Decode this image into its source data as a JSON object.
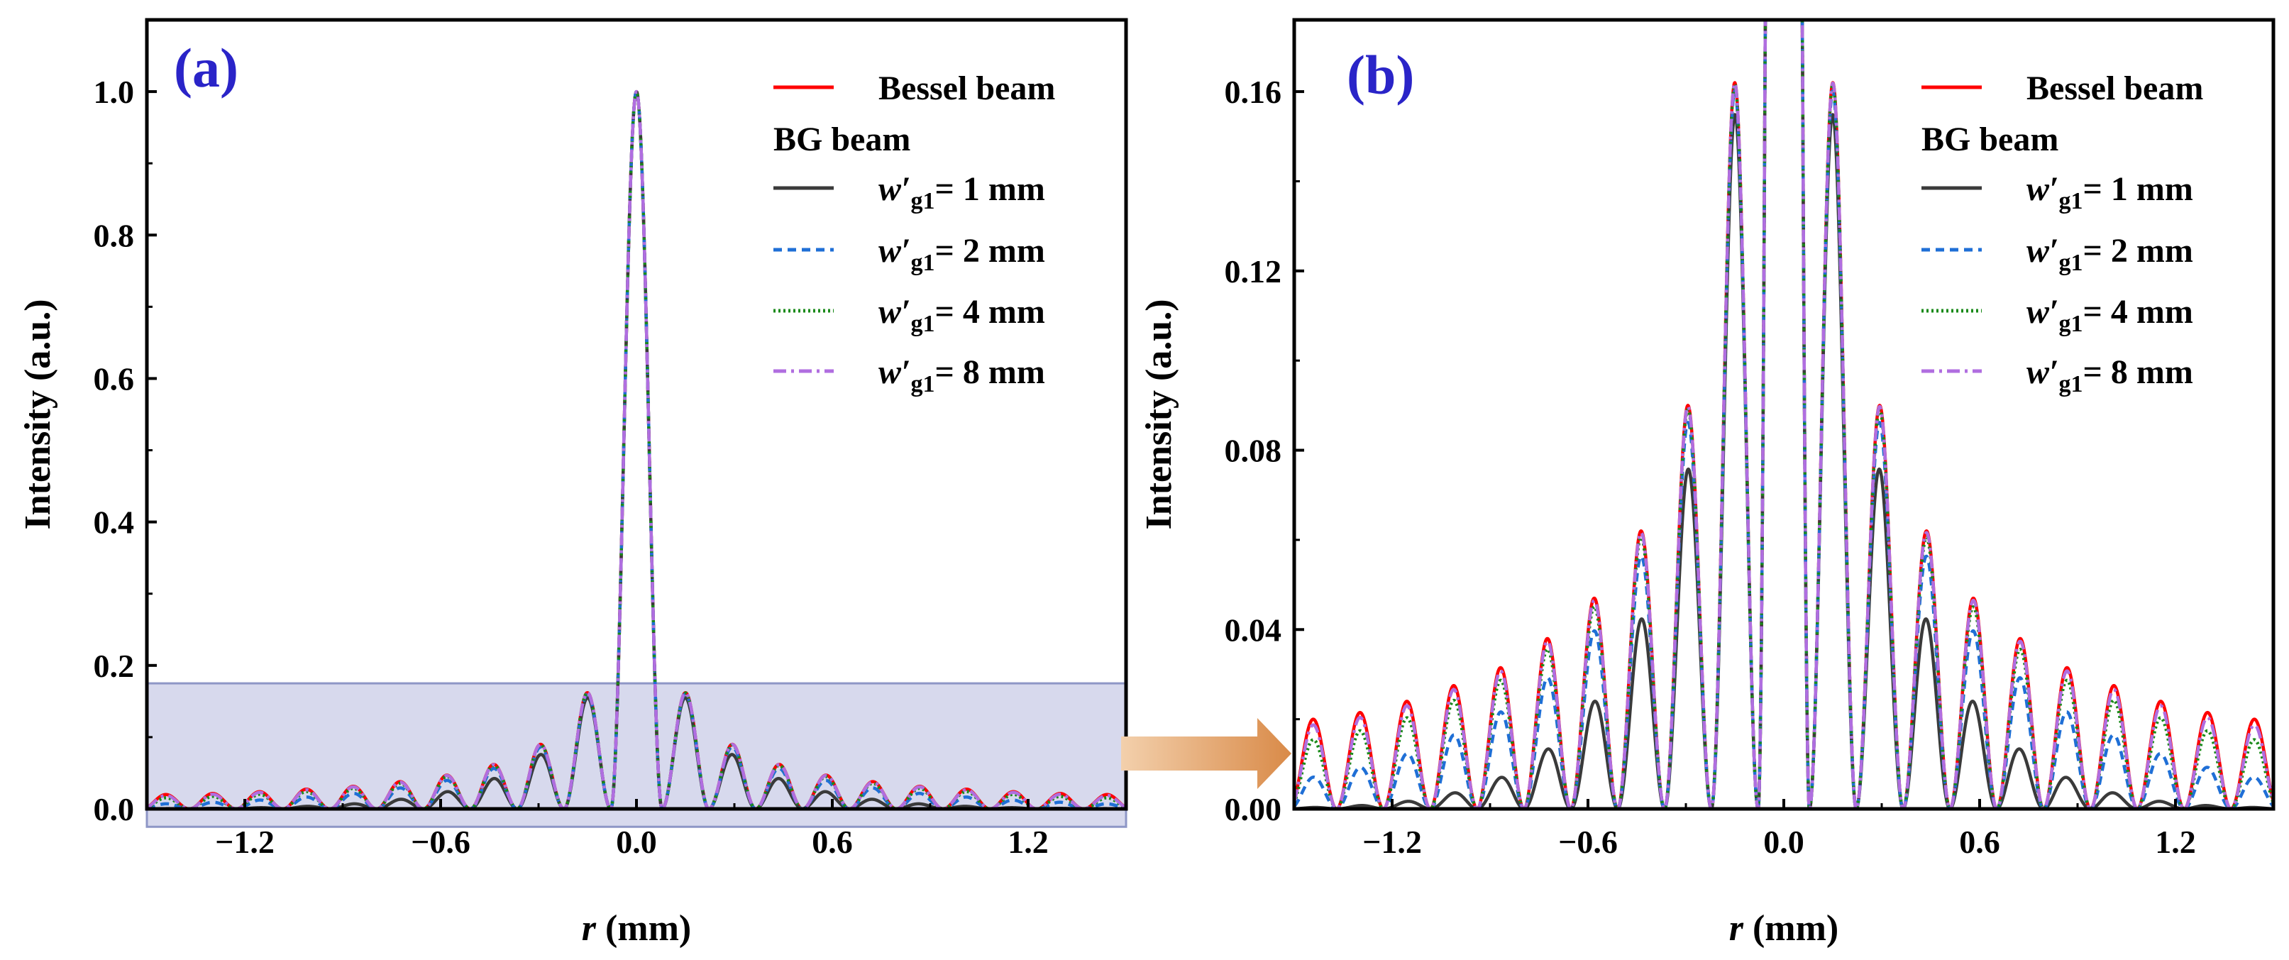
{
  "chart_data": [
    {
      "type": "line",
      "panel_label": "(a)",
      "xlabel_italic": "r",
      "xlabel_rest": " (mm)",
      "ylabel": "Intensity (a.u.)",
      "xlim": [
        -1.5,
        1.5
      ],
      "ylim": [
        0,
        1.1
      ],
      "xticks": [
        -1.2,
        -0.6,
        0.0,
        0.6,
        1.2
      ],
      "xtick_labels": [
        "−1.2",
        "−0.6",
        "0.0",
        "0.6",
        "1.2"
      ],
      "yticks": [
        0,
        0.2,
        0.4,
        0.6,
        0.8,
        1.0
      ],
      "ytick_labels": [
        "0.0",
        "0.2",
        "0.4",
        "0.6",
        "0.8",
        "1.0"
      ],
      "highlight_box": {
        "x": [
          -1.5,
          1.5
        ],
        "y": [
          -0.025,
          0.175
        ]
      }
    },
    {
      "type": "line",
      "panel_label": "(b)",
      "xlabel_italic": "r",
      "xlabel_rest": " (mm)",
      "ylabel": "Intensity (a.u.)",
      "xlim": [
        -1.5,
        1.5
      ],
      "ylim": [
        0,
        0.176
      ],
      "xticks": [
        -1.2,
        -0.6,
        0.0,
        0.6,
        1.2
      ],
      "xtick_labels": [
        "−1.2",
        "−0.6",
        "0.0",
        "0.6",
        "1.2"
      ],
      "yticks": [
        0,
        0.04,
        0.08,
        0.12,
        0.16
      ],
      "ytick_labels": [
        "0.00",
        "0.04",
        "0.08",
        "0.12",
        "0.16"
      ]
    }
  ],
  "model": {
    "description": "Bessel J0^2 radial profile; BG beam = Bessel x Gaussian envelope",
    "first_zero_mm": 0.0785,
    "lobe_spacing_mm": 0.1435,
    "side_lobe_peaks_mm": [
      0.1435,
      0.287,
      0.4305,
      0.574,
      0.7175,
      0.861,
      1.0045,
      1.148,
      1.2915,
      1.435
    ],
    "bessel_peak_values": [
      0.162,
      0.09,
      0.062,
      0.047,
      0.038,
      0.0315,
      0.0275,
      0.024,
      0.0215,
      0.02
    ]
  },
  "series": [
    {
      "name": "Bessel beam",
      "color": "#ff0000",
      "dash": "",
      "gauss_w_mm": null
    },
    {
      "name": "w′g1 = 1 mm",
      "color": "#3a3a3a",
      "dash": "",
      "gauss_w_mm": 1
    },
    {
      "name": "w′g1 = 2 mm",
      "color": "#1f6fd6",
      "dash": "12 8",
      "gauss_w_mm": 2
    },
    {
      "name": "w′g1 = 4 mm",
      "color": "#1a8a1a",
      "dash": "3 4",
      "gauss_w_mm": 4
    },
    {
      "name": "w′g1 = 8 mm",
      "color": "#b06ee0",
      "dash": "18 7 4 7",
      "gauss_w_mm": 8
    }
  ],
  "legend": {
    "bessel": "Bessel beam",
    "bg_header": "BG beam",
    "w_symbol": "w′",
    "w_sub": "g1",
    "entries": [
      "= 1 mm",
      "= 2 mm",
      "= 4 mm",
      "= 8 mm"
    ]
  },
  "colors": {
    "panel_label": "#2a24c8",
    "highlight_fill": "#c8cbe6",
    "highlight_stroke": "#8e96c6",
    "arrow_start": "#f3d0ac",
    "arrow_end": "#d98a48"
  }
}
